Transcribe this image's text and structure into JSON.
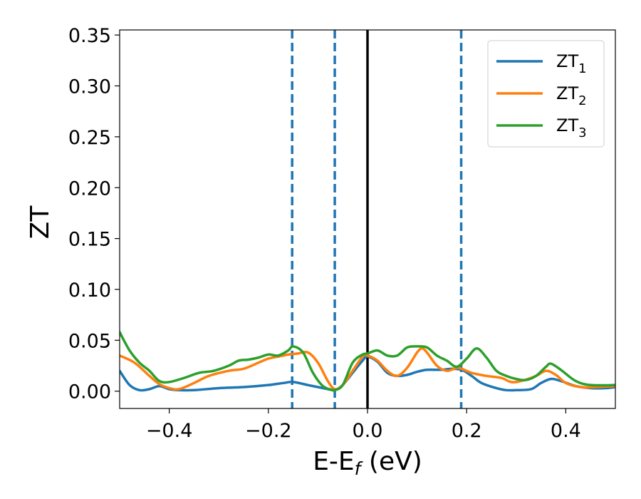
{
  "chart_data": {
    "type": "line",
    "xlabel": "E-E_f (eV)",
    "xlabel_main": "E-E",
    "xlabel_sub": "f",
    "xlabel_unit": " (eV)",
    "ylabel": "ZT",
    "xlim": [
      -0.5,
      0.5
    ],
    "ylim": [
      -0.017,
      0.355
    ],
    "xticks": [
      -0.4,
      -0.2,
      0.0,
      0.2,
      0.4
    ],
    "xtick_labels": [
      "−0.4",
      "−0.2",
      "0.0",
      "0.2",
      "0.4"
    ],
    "yticks": [
      0.0,
      0.05,
      0.1,
      0.15,
      0.2,
      0.25,
      0.3,
      0.35
    ],
    "ytick_labels": [
      "0.00",
      "0.05",
      "0.10",
      "0.15",
      "0.20",
      "0.25",
      "0.30",
      "0.35"
    ],
    "legend_position": "top-right",
    "grid": false,
    "vertical_lines": [
      {
        "x": -0.152,
        "style": "dashed",
        "color": "#1f77b4"
      },
      {
        "x": -0.066,
        "style": "dashed",
        "color": "#1f77b4"
      },
      {
        "x": 0.0,
        "style": "solid",
        "color": "#000000"
      },
      {
        "x": 0.189,
        "style": "dashed",
        "color": "#1f77b4"
      }
    ],
    "series": [
      {
        "name": "ZT_1",
        "legend_main": "ZT",
        "legend_sub": "1",
        "color": "#1f77b4",
        "x": [
          -0.5,
          -0.48,
          -0.46,
          -0.44,
          -0.42,
          -0.4,
          -0.38,
          -0.35,
          -0.3,
          -0.25,
          -0.2,
          -0.17,
          -0.15,
          -0.12,
          -0.1,
          -0.08,
          -0.066,
          -0.05,
          -0.03,
          -0.01,
          0.0,
          0.02,
          0.04,
          0.06,
          0.08,
          0.1,
          0.12,
          0.15,
          0.17,
          0.19,
          0.21,
          0.23,
          0.26,
          0.28,
          0.3,
          0.33,
          0.35,
          0.37,
          0.39,
          0.42,
          0.45,
          0.48,
          0.5
        ],
        "values": [
          0.02,
          0.006,
          0.001,
          0.002,
          0.005,
          0.002,
          0.001,
          0.001,
          0.003,
          0.004,
          0.006,
          0.008,
          0.009,
          0.006,
          0.004,
          0.002,
          0.001,
          0.006,
          0.018,
          0.03,
          0.034,
          0.029,
          0.018,
          0.015,
          0.016,
          0.019,
          0.021,
          0.021,
          0.022,
          0.021,
          0.015,
          0.008,
          0.003,
          0.001,
          0.001,
          0.002,
          0.008,
          0.012,
          0.01,
          0.005,
          0.003,
          0.003,
          0.004
        ]
      },
      {
        "name": "ZT_2",
        "legend_main": "ZT",
        "legend_sub": "2",
        "color": "#ff7f0e",
        "x": [
          -0.5,
          -0.47,
          -0.44,
          -0.42,
          -0.4,
          -0.38,
          -0.35,
          -0.32,
          -0.28,
          -0.25,
          -0.22,
          -0.2,
          -0.18,
          -0.16,
          -0.14,
          -0.12,
          -0.1,
          -0.08,
          -0.066,
          -0.05,
          -0.03,
          -0.01,
          0.0,
          0.02,
          0.04,
          0.06,
          0.08,
          0.1,
          0.11,
          0.12,
          0.14,
          0.16,
          0.18,
          0.19,
          0.21,
          0.24,
          0.27,
          0.29,
          0.31,
          0.34,
          0.36,
          0.38,
          0.4,
          0.43,
          0.46,
          0.5
        ],
        "values": [
          0.035,
          0.028,
          0.015,
          0.007,
          0.003,
          0.002,
          0.008,
          0.015,
          0.02,
          0.022,
          0.028,
          0.032,
          0.034,
          0.036,
          0.037,
          0.038,
          0.028,
          0.01,
          0.002,
          0.006,
          0.02,
          0.034,
          0.035,
          0.03,
          0.02,
          0.015,
          0.023,
          0.038,
          0.042,
          0.038,
          0.025,
          0.02,
          0.023,
          0.022,
          0.018,
          0.015,
          0.013,
          0.009,
          0.01,
          0.015,
          0.02,
          0.016,
          0.008,
          0.004,
          0.004,
          0.005
        ]
      },
      {
        "name": "ZT_3",
        "legend_main": "ZT",
        "legend_sub": "3",
        "color": "#2ca02c",
        "x": [
          -0.5,
          -0.48,
          -0.46,
          -0.44,
          -0.42,
          -0.4,
          -0.37,
          -0.34,
          -0.31,
          -0.28,
          -0.26,
          -0.24,
          -0.22,
          -0.2,
          -0.18,
          -0.16,
          -0.15,
          -0.13,
          -0.11,
          -0.09,
          -0.07,
          -0.066,
          -0.05,
          -0.03,
          -0.01,
          0.0,
          0.02,
          0.04,
          0.06,
          0.08,
          0.1,
          0.12,
          0.14,
          0.16,
          0.18,
          0.2,
          0.22,
          0.24,
          0.26,
          0.28,
          0.3,
          0.32,
          0.34,
          0.36,
          0.37,
          0.39,
          0.42,
          0.45,
          0.5
        ],
        "values": [
          0.058,
          0.04,
          0.028,
          0.02,
          0.01,
          0.009,
          0.013,
          0.018,
          0.02,
          0.025,
          0.03,
          0.031,
          0.033,
          0.036,
          0.035,
          0.04,
          0.044,
          0.038,
          0.018,
          0.005,
          0.001,
          0.001,
          0.006,
          0.028,
          0.036,
          0.037,
          0.04,
          0.035,
          0.035,
          0.043,
          0.044,
          0.043,
          0.035,
          0.03,
          0.024,
          0.032,
          0.042,
          0.033,
          0.02,
          0.015,
          0.012,
          0.011,
          0.015,
          0.024,
          0.027,
          0.021,
          0.01,
          0.006,
          0.006
        ]
      }
    ]
  }
}
